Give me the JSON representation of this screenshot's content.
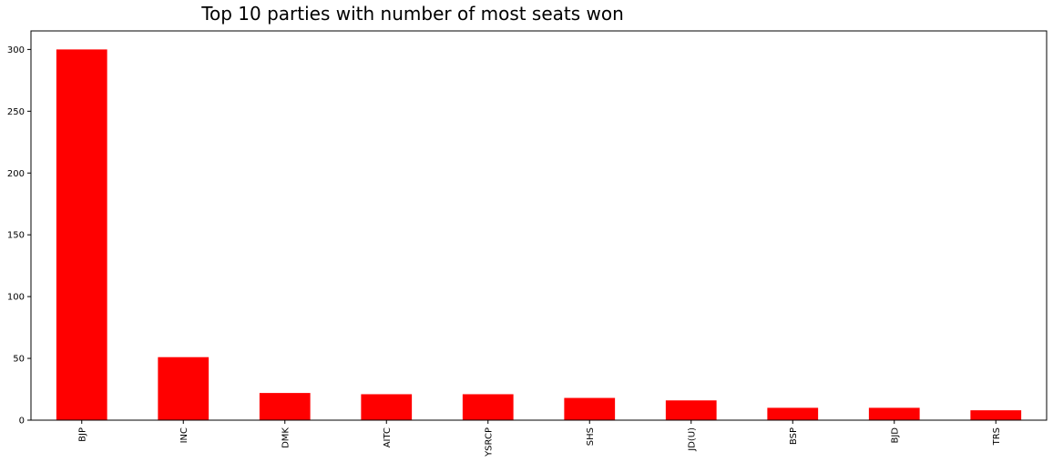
{
  "chart_data": {
    "type": "bar",
    "title": "Top 10 parties with number of most seats won",
    "xlabel": "",
    "ylabel": "",
    "categories": [
      "BJP",
      "INC",
      "DMK",
      "AITC",
      "YSRCP",
      "SHS",
      "JD(U)",
      "BSP",
      "BJD",
      "TRS"
    ],
    "values": [
      300,
      51,
      22,
      21,
      21,
      18,
      16,
      10,
      10,
      8
    ],
    "ylim": [
      0,
      315
    ],
    "yticks": [
      0,
      50,
      100,
      150,
      200,
      250,
      300
    ],
    "grid": false,
    "bar_color": "#ff0000"
  }
}
